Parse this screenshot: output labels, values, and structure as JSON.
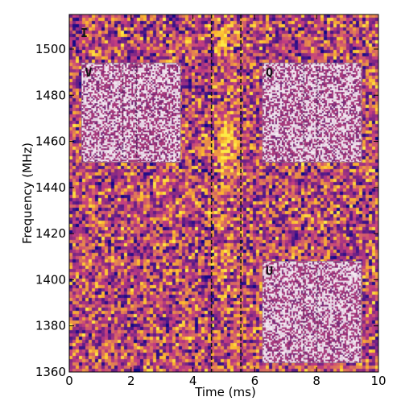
{
  "chart_data": {
    "type": "heatmap",
    "title": "",
    "xlabel": "Time  (ms)",
    "ylabel": "Frequency  (MHz)",
    "xlim": [
      0,
      10
    ],
    "ylim": [
      1360,
      1515
    ],
    "x_ticks": [
      0,
      2,
      4,
      6,
      8,
      10
    ],
    "x_tick_labels": [
      "0",
      "2",
      "4",
      "6",
      "8",
      "10"
    ],
    "y_ticks": [
      1360,
      1380,
      1400,
      1420,
      1440,
      1460,
      1480,
      1500
    ],
    "y_tick_labels": [
      "1360",
      "1380",
      "1400",
      "1420",
      "1440",
      "1460",
      "1480",
      "1500"
    ],
    "colormap": "plasma",
    "colors": {
      "low": "#4b1688",
      "mid": "#c33d80",
      "high": "#fbb32f",
      "peak": "#fdea45"
    },
    "main_panel_label": "I",
    "pulse_center_time_ms": 5.05,
    "pulse_peak_frequency_mhz": 1458,
    "marker_lines_ms": [
      4.6,
      5.55
    ],
    "insets": [
      {
        "label": "V",
        "x_range": [
          0.4,
          3.6
        ],
        "y_range": [
          1451,
          1494
        ]
      },
      {
        "label": "Q",
        "x_range": [
          6.25,
          9.45
        ],
        "y_range": [
          1451,
          1494
        ]
      },
      {
        "label": "U",
        "x_range": [
          6.25,
          9.45
        ],
        "y_range": [
          1364,
          1408
        ]
      }
    ]
  }
}
